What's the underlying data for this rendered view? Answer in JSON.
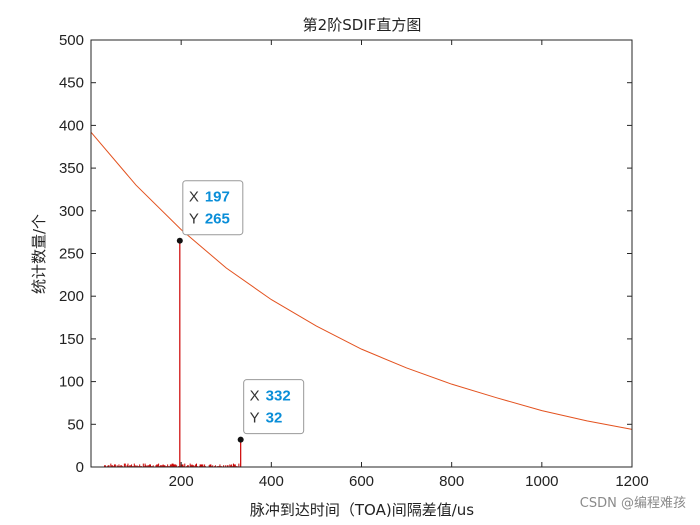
{
  "chart_data": {
    "type": "bar",
    "title": "第2阶SDIF直方图",
    "xlabel": "脉冲到达时间（TOA)间隔差值/us",
    "ylabel": "统计数量/个",
    "xlim": [
      0,
      1200
    ],
    "ylim": [
      0,
      500
    ],
    "xticks": [
      200,
      400,
      600,
      800,
      1000,
      1200
    ],
    "yticks": [
      0,
      50,
      100,
      150,
      200,
      250,
      300,
      350,
      400,
      450,
      500
    ],
    "grid": false,
    "bar_color": "#cc0000",
    "threshold_color": "#e3521f",
    "bars": [
      {
        "x": 197,
        "y": 265
      },
      {
        "x": 332,
        "y": 32
      }
    ],
    "noise_x_range": [
      30,
      330
    ],
    "noise_max": 4,
    "threshold_curve": [
      {
        "x": 0,
        "y": 392
      },
      {
        "x": 100,
        "y": 330
      },
      {
        "x": 200,
        "y": 278
      },
      {
        "x": 300,
        "y": 233
      },
      {
        "x": 400,
        "y": 196
      },
      {
        "x": 500,
        "y": 165
      },
      {
        "x": 600,
        "y": 138
      },
      {
        "x": 700,
        "y": 116
      },
      {
        "x": 800,
        "y": 97
      },
      {
        "x": 900,
        "y": 81
      },
      {
        "x": 1000,
        "y": 66
      },
      {
        "x": 1100,
        "y": 54
      },
      {
        "x": 1200,
        "y": 44
      }
    ],
    "datatips": [
      {
        "x_label": "X",
        "x": "197",
        "y_label": "Y",
        "y": "265"
      },
      {
        "x_label": "X",
        "x": "332",
        "y_label": "Y",
        "y": "32"
      }
    ]
  },
  "watermark": "CSDN @编程难孩"
}
